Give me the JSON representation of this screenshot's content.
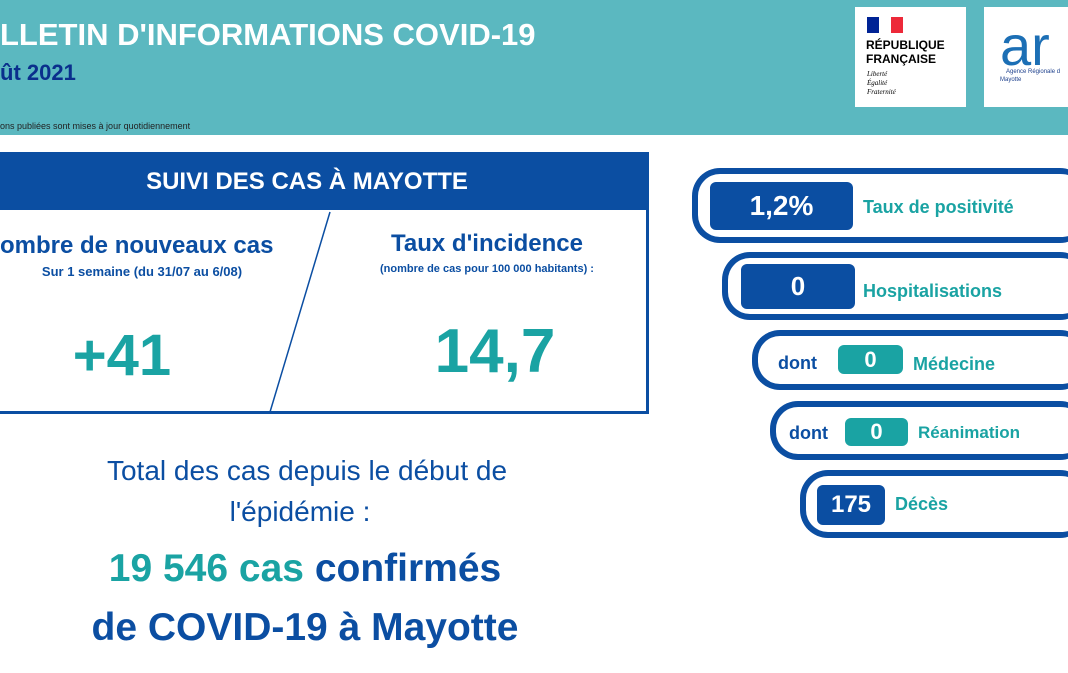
{
  "header": {
    "title": "LLETIN D'INFORMATIONS COVID-19",
    "date": "ût 2021",
    "note": "ons publiées sont mises à jour quotidiennement",
    "logo_rf": {
      "line1": "RÉPUBLIQUE",
      "line2": "FRANÇAISE",
      "motto1": "Liberté",
      "motto2": "Égalité",
      "motto3": "Fraternité"
    },
    "logo_ars": {
      "mark": "ar",
      "line1": "Agence Régionale d",
      "line2": "Mayotte"
    }
  },
  "suivi": {
    "title": "SUIVI DES CAS À MAYOTTE",
    "new_cases": {
      "label": "ombre de nouveaux cas",
      "sub": "Sur 1 semaine (du 31/07 au 6/08)",
      "value": "+41"
    },
    "incidence": {
      "label": "Taux d'incidence",
      "sub": "(nombre de cas pour 100 000 habitants) :",
      "value": "14,7"
    }
  },
  "total": {
    "line1": "Total des cas depuis le début de",
    "line2": "l'épidémie :",
    "count": "19 546 cas",
    "word": "confirmés",
    "line4": "de COVID-19 à Mayotte"
  },
  "indicators": [
    {
      "value": "1,2%",
      "label": "Taux de positivité"
    },
    {
      "value": "0",
      "label": "Hospitalisations"
    },
    {
      "prefix": "dont",
      "value": "0",
      "label": "Médecine"
    },
    {
      "prefix": "dont",
      "value": "0",
      "label": "Réanimation"
    },
    {
      "value": "175",
      "label": "Décès"
    }
  ]
}
